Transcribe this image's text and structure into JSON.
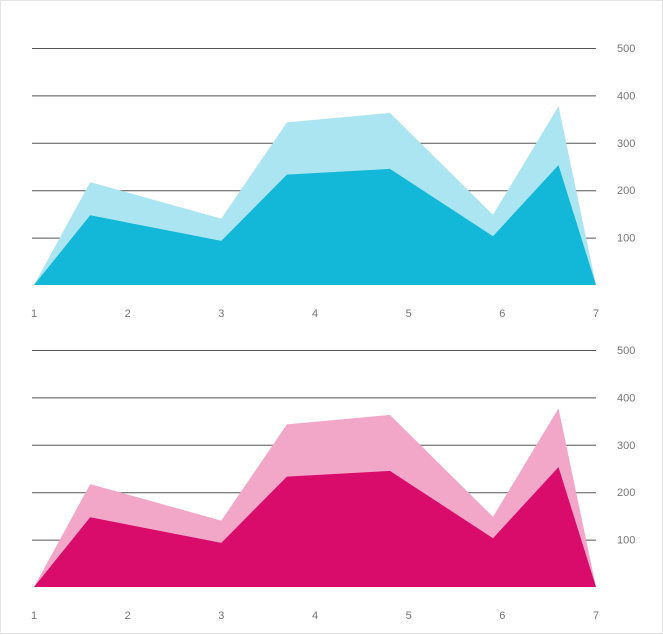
{
  "chart_data": [
    {
      "type": "area",
      "x": [
        1,
        1.6,
        3,
        3.7,
        4.8,
        5.9,
        6.6,
        7
      ],
      "series": [
        {
          "values": [
            0,
            217,
            140,
            343,
            363,
            148,
            377,
            0
          ],
          "color": "#abe5f1"
        },
        {
          "values": [
            0,
            147,
            93,
            233,
            245,
            103,
            253,
            0
          ],
          "color": "#13b7d7"
        }
      ],
      "xticks": [
        "1",
        "2",
        "3",
        "4",
        "5",
        "6",
        "7"
      ],
      "yticks": [
        "100",
        "200",
        "300",
        "400",
        "500"
      ],
      "xlim": [
        1,
        7
      ],
      "ylim": [
        0,
        500
      ],
      "grid": true,
      "y_axis_side": "right"
    },
    {
      "type": "area",
      "x": [
        1,
        1.6,
        3,
        3.7,
        4.8,
        5.9,
        6.6,
        7
      ],
      "series": [
        {
          "values": [
            0,
            217,
            140,
            343,
            363,
            148,
            377,
            0
          ],
          "color": "#f2a7c9"
        },
        {
          "values": [
            0,
            147,
            93,
            233,
            245,
            103,
            253,
            0
          ],
          "color": "#d90b6b"
        }
      ],
      "xticks": [
        "1",
        "2",
        "3",
        "4",
        "5",
        "6",
        "7"
      ],
      "yticks": [
        "100",
        "200",
        "300",
        "400",
        "500"
      ],
      "xlim": [
        1,
        7
      ],
      "ylim": [
        0,
        500
      ],
      "grid": true,
      "y_axis_side": "right"
    }
  ]
}
